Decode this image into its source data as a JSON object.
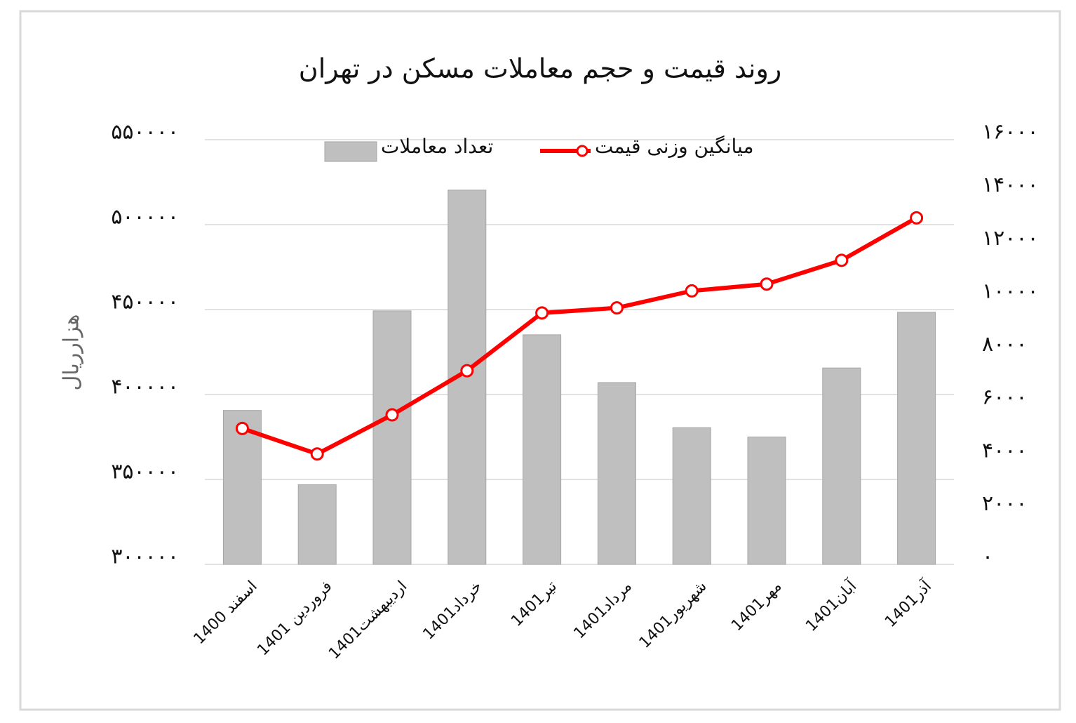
{
  "chart_data": {
    "type": "bar-line",
    "title": "روند قیمت و حجم معاملات مسکن در تهران",
    "ylabel": "هزارریال",
    "categories": [
      "اسفند 1400",
      "فروردین 1401",
      "اردیبهشت1401",
      "خرداد1401",
      "تیر1401",
      "مرداد1401",
      "شهریور1401",
      "مهر1401",
      "آبان1401",
      "آذر1401"
    ],
    "series": [
      {
        "name": "تعداد معاملات",
        "type": "bar",
        "axis": "y2",
        "color": "#bfbfbf",
        "values": [
          5800,
          3000,
          9550,
          14100,
          8650,
          6850,
          5150,
          4800,
          7400,
          9500
        ]
      },
      {
        "name": "میانگین وزنی قیمت",
        "type": "line",
        "axis": "y",
        "color": "#ff0000",
        "values": [
          380000,
          365000,
          388000,
          414000,
          448000,
          451000,
          461000,
          465000,
          479000,
          504000
        ]
      }
    ],
    "ylim": [
      300000,
      550000
    ],
    "yticks": [
      {
        "value": 300000,
        "label": "۳۰۰۰۰۰"
      },
      {
        "value": 350000,
        "label": "۳۵۰۰۰۰"
      },
      {
        "value": 400000,
        "label": "۴۰۰۰۰۰"
      },
      {
        "value": 450000,
        "label": "۴۵۰۰۰۰"
      },
      {
        "value": 500000,
        "label": "۵۰۰۰۰۰"
      },
      {
        "value": 550000,
        "label": "۵۵۰۰۰۰"
      }
    ],
    "y2lim": [
      0,
      16000
    ],
    "y2ticks": [
      {
        "value": 0,
        "label": "۰"
      },
      {
        "value": 2000,
        "label": "۲۰۰۰"
      },
      {
        "value": 4000,
        "label": "۴۰۰۰"
      },
      {
        "value": 6000,
        "label": "۶۰۰۰"
      },
      {
        "value": 8000,
        "label": "۸۰۰۰"
      },
      {
        "value": 10000,
        "label": "۱۰۰۰۰"
      },
      {
        "value": 12000,
        "label": "۱۲۰۰۰"
      },
      {
        "value": 14000,
        "label": "۱۴۰۰۰"
      },
      {
        "value": 16000,
        "label": "۱۶۰۰۰"
      }
    ],
    "grid": true,
    "legend": "top"
  }
}
